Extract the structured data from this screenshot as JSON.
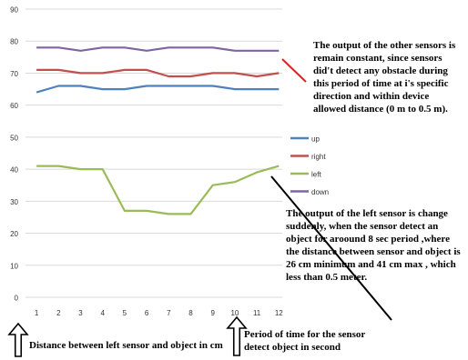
{
  "chart_data": {
    "type": "line",
    "categories": [
      "1",
      "2",
      "3",
      "4",
      "5",
      "6",
      "7",
      "8",
      "9",
      "10",
      "11",
      "12"
    ],
    "ylim": [
      0,
      90
    ],
    "yticks": [
      "0",
      "10",
      "20",
      "30",
      "40",
      "50",
      "60",
      "70",
      "80",
      "90"
    ],
    "grid": true,
    "legend_position": "right",
    "series": [
      {
        "name": "up",
        "color": "#4f81bd",
        "values": [
          64,
          66,
          66,
          65,
          65,
          66,
          66,
          66,
          66,
          65,
          65,
          65
        ]
      },
      {
        "name": "right",
        "color": "#c0504d",
        "values": [
          71,
          71,
          70,
          70,
          71,
          71,
          69,
          69,
          70,
          70,
          69,
          70
        ]
      },
      {
        "name": "left",
        "color": "#9bbb59",
        "values": [
          41,
          41,
          40,
          40,
          27,
          27,
          26,
          26,
          35,
          36,
          39,
          41
        ]
      },
      {
        "name": "down",
        "color": "#8064a2",
        "values": [
          78,
          78,
          77,
          78,
          78,
          77,
          78,
          78,
          78,
          77,
          77,
          77
        ]
      }
    ]
  },
  "annotations": {
    "top_note": "The output of the other sensors is remain constant, since sensors did't detect any obstacle during this period of time at i's specific direction and within device allowed distance (0 m to 0.5 m).",
    "bottom_note": "The output of the left sensor is change suddenly, when the sensor detect an object for aroound 8 sec period ,where the distance between sensor and object is 26 cm minimum and 41 cm max , which less than 0.5 meter.",
    "y_axis_note": "Distance between left sensor and object in cm",
    "x_axis_note": "Period of time for the sensor detect object in second",
    "top_arrow_color": "#e02020",
    "bottom_arrow_color": "#000000"
  }
}
